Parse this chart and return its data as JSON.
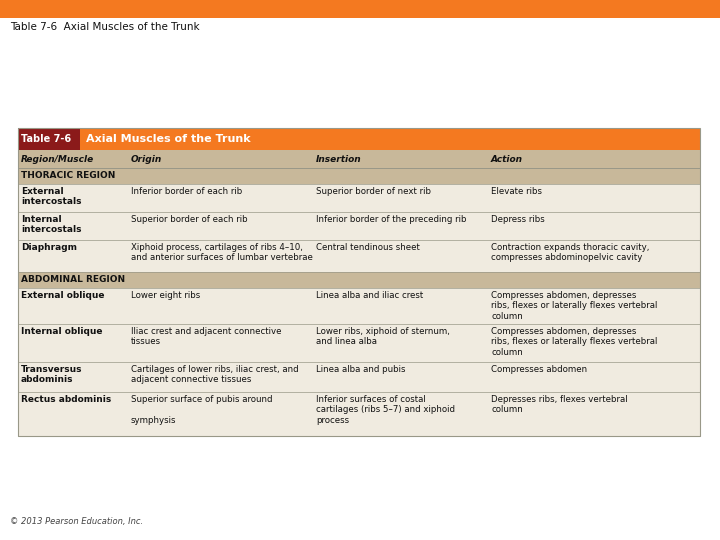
{
  "page_title": "Table 7-6  Axial Muscles of the Trunk",
  "page_title_fontsize": 8.5,
  "top_bar_color": "#F47920",
  "table_number_bg": "#8B1A1A",
  "table_title": "Axial Muscles of the Trunk",
  "table_number": "Table 7-6",
  "col_headers": [
    "Region/Muscle",
    "Origin",
    "Insertion",
    "Action"
  ],
  "col_header_bg": "#C8B89A",
  "section_bg": "#C8B89A",
  "row_bg_light": "#F0EBE0",
  "border_color": "#999888",
  "footer_text": "© 2013 Pearson Education, Inc.",
  "rows": [
    {
      "type": "section",
      "col0": "THORACIC REGION",
      "col1": "",
      "col2": "",
      "col3": ""
    },
    {
      "type": "data",
      "col0": "External\nintercostals",
      "col1": "Inferior border of each rib",
      "col2": "Superior border of next rib",
      "col3": "Elevate ribs"
    },
    {
      "type": "data",
      "col0": "Internal\nintercostals",
      "col1": "Superior border of each rib",
      "col2": "Inferior border of the preceding rib",
      "col3": "Depress ribs"
    },
    {
      "type": "data",
      "col0": "Diaphragm",
      "col1": "Xiphoid process, cartilages of ribs 4–10,\nand anterior surfaces of lumbar vertebrae",
      "col2": "Central tendinous sheet",
      "col3": "Contraction expands thoracic cavity,\ncompresses abdominopelvic cavity"
    },
    {
      "type": "section",
      "col0": "ABDOMINAL REGION",
      "col1": "",
      "col2": "",
      "col3": ""
    },
    {
      "type": "data",
      "col0": "External oblique",
      "col1": "Lower eight ribs",
      "col2": "Linea alba and iliac crest",
      "col3": "Compresses abdomen, depresses\nribs, flexes or laterally flexes vertebral\ncolumn"
    },
    {
      "type": "data",
      "col0": "Internal oblique",
      "col1": "Iliac crest and adjacent connective\ntissues",
      "col2": "Lower ribs, xiphoid of sternum,\nand linea alba",
      "col3": "Compresses abdomen, depresses\nribs, flexes or laterally flexes vertebral\ncolumn"
    },
    {
      "type": "data",
      "col0": "Transversus\nabdominis",
      "col1": "Cartilages of lower ribs, iliac crest, and\nadjacent connective tissues",
      "col2": "Linea alba and pubis",
      "col3": "Compresses abdomen"
    },
    {
      "type": "data",
      "col0": "Rectus abdominis",
      "col1": "Superior surface of pubis around\n\nsymphysis",
      "col2": "Inferior surfaces of costal\ncartilages (ribs 5–7) and xiphoid\nprocess",
      "col3": "Depresses ribs, flexes vertebral\ncolumn"
    }
  ]
}
